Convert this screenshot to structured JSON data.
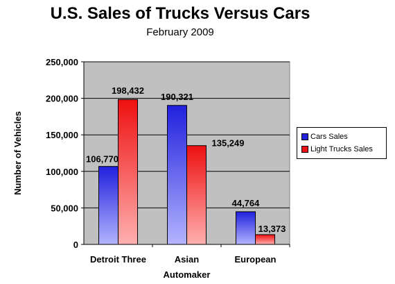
{
  "chart_data": {
    "type": "bar",
    "title": "U.S. Sales of Trucks Versus Cars",
    "subtitle": "February 2009",
    "xlabel": "Automaker",
    "ylabel": "Number of Vehicles",
    "categories": [
      "Detroit Three",
      "Asian",
      "European"
    ],
    "series": [
      {
        "name": "Cars Sales",
        "values": [
          106770,
          190321,
          44764
        ],
        "labels": [
          "106,770",
          "190,321",
          "44,764"
        ],
        "color": "#2222dd"
      },
      {
        "name": "Light Trucks Sales",
        "values": [
          198432,
          135249,
          13373
        ],
        "labels": [
          "198,432",
          "135,249",
          "13,373"
        ],
        "color": "#ee1111"
      }
    ],
    "ylim": [
      0,
      250000
    ],
    "yticks": [
      0,
      50000,
      100000,
      150000,
      200000,
      250000
    ],
    "ytick_labels": [
      "0",
      "50,000",
      "100,000",
      "150,000",
      "200,000",
      "250,000"
    ],
    "grid": true,
    "plot_background": "#c0c0c0",
    "legend_position": "right"
  }
}
